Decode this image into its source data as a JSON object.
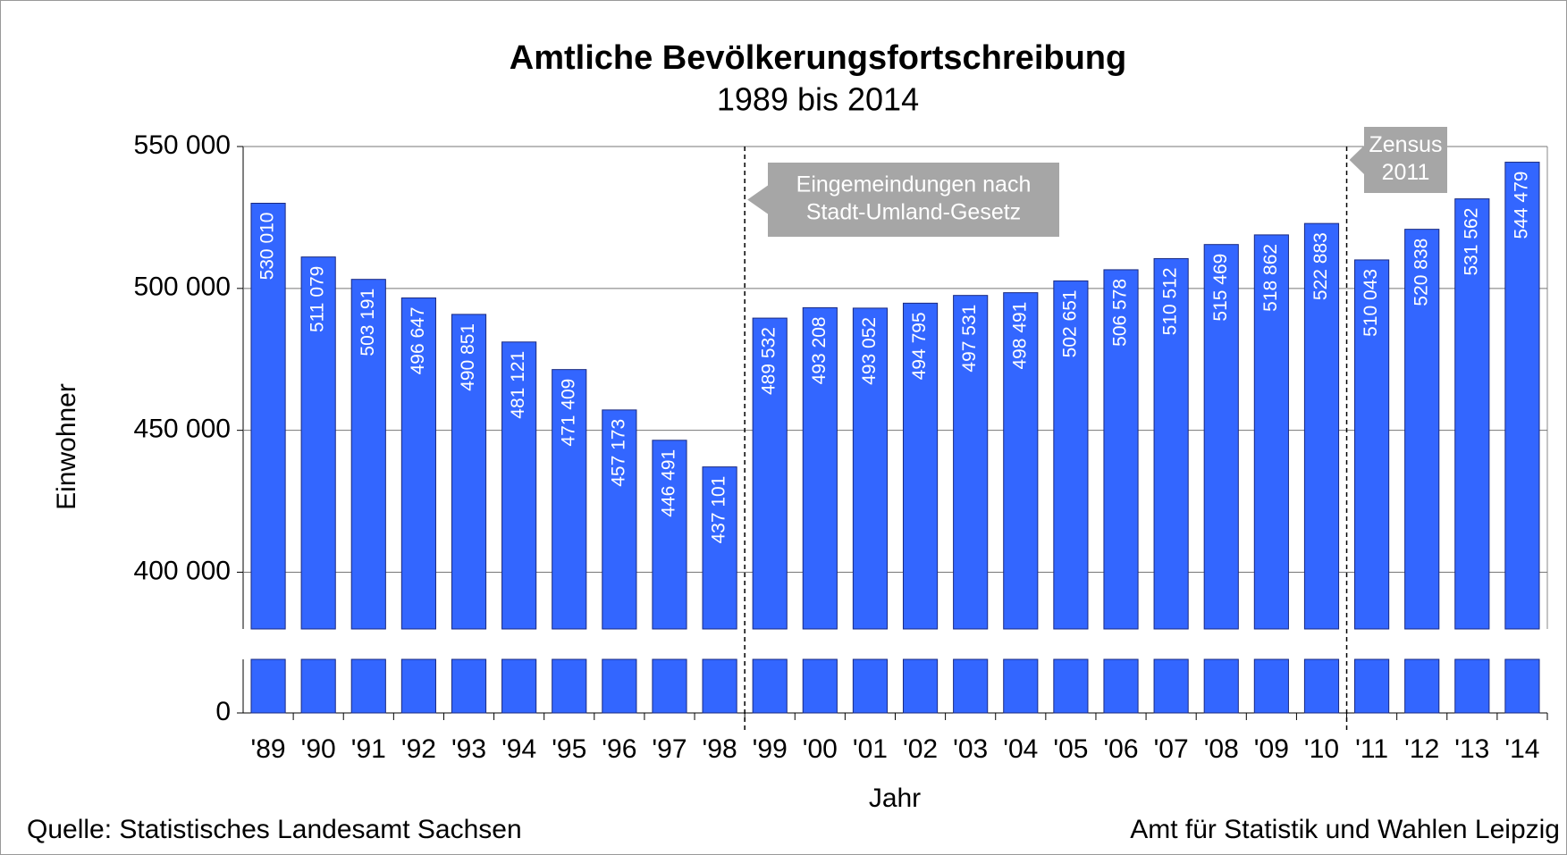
{
  "chart_data": {
    "type": "bar",
    "title": "Amtliche Bevölkerungsfortschreibung",
    "subtitle": "1989 bis 2014",
    "x_label": "Jahr",
    "y_label": "Einwohner",
    "source": "Quelle: Statistisches Landesamt Sachsen",
    "credit": "Amt für Statistik und Wahlen Leipzig",
    "categories": [
      "'89",
      "'90",
      "'91",
      "'92",
      "'93",
      "'94",
      "'95",
      "'96",
      "'97",
      "'98",
      "'99",
      "'00",
      "'01",
      "'02",
      "'03",
      "'04",
      "'05",
      "'06",
      "'07",
      "'08",
      "'09",
      "'10",
      "'11",
      "'12",
      "'13",
      "'14"
    ],
    "values": [
      530010,
      511079,
      503191,
      496647,
      490851,
      481121,
      471409,
      457173,
      446491,
      437101,
      489532,
      493208,
      493052,
      494795,
      497531,
      498491,
      502651,
      506578,
      510512,
      515469,
      518862,
      522883,
      510043,
      520838,
      531562,
      544479
    ],
    "value_labels": [
      "530 010",
      "511 079",
      "503 191",
      "496 647",
      "490 851",
      "481 121",
      "471 409",
      "457 173",
      "446 491",
      "437 101",
      "489 532",
      "493 208",
      "493 052",
      "494 795",
      "497 531",
      "498 491",
      "502 651",
      "506 578",
      "510 512",
      "515 469",
      "518 862",
      "522 883",
      "510 043",
      "520 838",
      "531 562",
      "544 479"
    ],
    "color": "#3366ff",
    "ylim": [
      380000,
      550000
    ],
    "axis_break": true,
    "yticks": [
      0,
      {
        "value": 400000,
        "label": "400 000"
      },
      {
        "value": 450000,
        "label": "450 000"
      },
      {
        "value": 500000,
        "label": "500 000"
      },
      {
        "value": 550000,
        "label": "550 000"
      }
    ],
    "grid": true,
    "annotations": [
      {
        "before": "'99",
        "text": [
          "Eingemeindungen nach",
          "Stadt-Umland-Gesetz"
        ]
      },
      {
        "before": "'11",
        "text": [
          "Zensus",
          "2011"
        ]
      }
    ]
  }
}
